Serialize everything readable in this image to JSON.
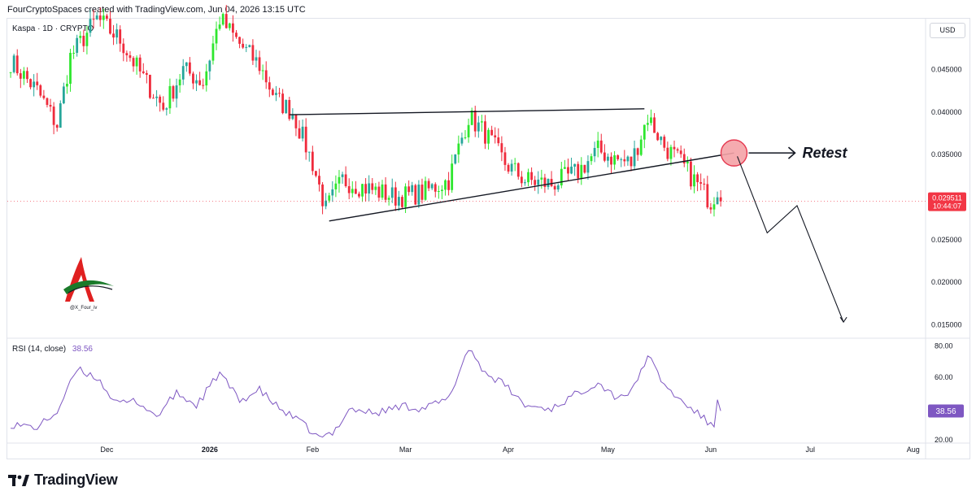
{
  "header": {
    "caption": "FourCryptoSpaces created with TradingView.com, Jun 04, 2026 13:15 UTC",
    "symbol": "Kaspa · 1D · CRYPTO",
    "currency": "USD"
  },
  "branding": {
    "footer_text": "TradingView",
    "watermark_handle": "@X_Four_iv"
  },
  "annotation": {
    "retest_label": "Retest"
  },
  "colors": {
    "up": "#26a69a",
    "bull_bright": "#2ee62e",
    "down": "#ef2b3c",
    "rsi_line": "#7e57c2",
    "price_badge": "#f23645",
    "circle_fill": "#f4a2a6",
    "circle_stroke": "#e53950"
  },
  "chart_data": [
    {
      "type": "candlestick",
      "title": "Kaspa · 1D · CRYPTO",
      "ylim": [
        0.0135,
        0.0509
      ],
      "y_ticks": [
        "0.045000",
        "0.040000",
        "0.035000",
        "0.030000",
        "0.025000",
        "0.020000",
        "0.015000"
      ],
      "y_tick_values": [
        0.045,
        0.04,
        0.035,
        0.03,
        0.025,
        0.02,
        0.015
      ],
      "x_ticks": [
        {
          "label": "Dec",
          "date": "2025-12-01"
        },
        {
          "label": "2026",
          "date": "2026-01-01",
          "bold": true
        },
        {
          "label": "Feb",
          "date": "2026-02-01"
        },
        {
          "label": "Mar",
          "date": "2026-03-01"
        },
        {
          "label": "Apr",
          "date": "2026-04-01"
        },
        {
          "label": "May",
          "date": "2026-05-01"
        },
        {
          "label": "Jun",
          "date": "2026-06-01"
        },
        {
          "label": "Jul",
          "date": "2026-07-01"
        },
        {
          "label": "Aug",
          "date": "2026-08-01"
        }
      ],
      "last_price": {
        "value": 0.029511,
        "label": "0.029511",
        "countdown": "10:44:07"
      },
      "close_series": [
        {
          "date": "2025-11-02",
          "close": 0.046
        },
        {
          "date": "2025-11-10",
          "close": 0.0425
        },
        {
          "date": "2025-11-16",
          "close": 0.0385
        },
        {
          "date": "2025-11-20",
          "close": 0.0465
        },
        {
          "date": "2025-11-28",
          "close": 0.051
        },
        {
          "date": "2025-12-05",
          "close": 0.0485
        },
        {
          "date": "2025-12-12",
          "close": 0.044
        },
        {
          "date": "2025-12-18",
          "close": 0.0405
        },
        {
          "date": "2025-12-24",
          "close": 0.045
        },
        {
          "date": "2025-12-30",
          "close": 0.0435
        },
        {
          "date": "2026-01-04",
          "close": 0.051
        },
        {
          "date": "2026-01-10",
          "close": 0.048
        },
        {
          "date": "2026-01-16",
          "close": 0.0455
        },
        {
          "date": "2026-01-21",
          "close": 0.0415
        },
        {
          "date": "2026-01-26",
          "close": 0.04
        },
        {
          "date": "2026-02-01",
          "close": 0.034
        },
        {
          "date": "2026-02-05",
          "close": 0.0285
        },
        {
          "date": "2026-02-10",
          "close": 0.032
        },
        {
          "date": "2026-02-18",
          "close": 0.031
        },
        {
          "date": "2026-02-26",
          "close": 0.03
        },
        {
          "date": "2026-03-06",
          "close": 0.0305
        },
        {
          "date": "2026-03-14",
          "close": 0.032
        },
        {
          "date": "2026-03-20",
          "close": 0.0395
        },
        {
          "date": "2026-03-25",
          "close": 0.0375
        },
        {
          "date": "2026-03-31",
          "close": 0.034
        },
        {
          "date": "2026-04-06",
          "close": 0.032
        },
        {
          "date": "2026-04-14",
          "close": 0.0315
        },
        {
          "date": "2026-04-22",
          "close": 0.033
        },
        {
          "date": "2026-04-28",
          "close": 0.0355
        },
        {
          "date": "2026-05-03",
          "close": 0.0345
        },
        {
          "date": "2026-05-08",
          "close": 0.034
        },
        {
          "date": "2026-05-13",
          "close": 0.0395
        },
        {
          "date": "2026-05-18",
          "close": 0.036
        },
        {
          "date": "2026-05-23",
          "close": 0.034
        },
        {
          "date": "2026-05-28",
          "close": 0.0315
        },
        {
          "date": "2026-06-01",
          "close": 0.0295
        },
        {
          "date": "2026-06-03",
          "close": 0.031
        },
        {
          "date": "2026-06-04",
          "close": 0.0295
        }
      ],
      "trendlines": [
        {
          "from": {
            "date": "2026-01-25",
            "price": 0.0397
          },
          "to": {
            "date": "2026-05-12",
            "price": 0.0404
          }
        },
        {
          "from": {
            "date": "2026-02-06",
            "price": 0.0272
          },
          "to": {
            "date": "2026-06-08",
            "price": 0.0352
          }
        }
      ],
      "projection": [
        {
          "date": "2026-06-09",
          "price": 0.0348
        },
        {
          "date": "2026-06-18",
          "price": 0.0258
        },
        {
          "date": "2026-06-27",
          "price": 0.029
        },
        {
          "date": "2026-07-11",
          "price": 0.0153
        }
      ],
      "retest_zone": {
        "date": "2026-06-08",
        "price": 0.0352
      }
    },
    {
      "type": "line",
      "title": "RSI (14, close)",
      "current_value": "38.56",
      "current": 38.56,
      "ylim": [
        18,
        84
      ],
      "y_ticks": [
        "80.00",
        "60.00",
        "20.00"
      ],
      "y_tick_values": [
        80,
        60,
        20
      ],
      "series": [
        {
          "date": "2025-11-02",
          "value": 30
        },
        {
          "date": "2025-11-10",
          "value": 28
        },
        {
          "date": "2025-11-16",
          "value": 38
        },
        {
          "date": "2025-11-22",
          "value": 65
        },
        {
          "date": "2025-11-28",
          "value": 60
        },
        {
          "date": "2025-12-04",
          "value": 43
        },
        {
          "date": "2025-12-10",
          "value": 45
        },
        {
          "date": "2025-12-16",
          "value": 35
        },
        {
          "date": "2025-12-22",
          "value": 50
        },
        {
          "date": "2025-12-28",
          "value": 42
        },
        {
          "date": "2026-01-04",
          "value": 63
        },
        {
          "date": "2026-01-10",
          "value": 45
        },
        {
          "date": "2026-01-16",
          "value": 52
        },
        {
          "date": "2026-01-22",
          "value": 40
        },
        {
          "date": "2026-01-28",
          "value": 32
        },
        {
          "date": "2026-02-03",
          "value": 21
        },
        {
          "date": "2026-02-07",
          "value": 24
        },
        {
          "date": "2026-02-12",
          "value": 40
        },
        {
          "date": "2026-02-20",
          "value": 37
        },
        {
          "date": "2026-02-28",
          "value": 42
        },
        {
          "date": "2026-03-06",
          "value": 40
        },
        {
          "date": "2026-03-14",
          "value": 46
        },
        {
          "date": "2026-03-20",
          "value": 79
        },
        {
          "date": "2026-03-25",
          "value": 63
        },
        {
          "date": "2026-03-31",
          "value": 55
        },
        {
          "date": "2026-04-06",
          "value": 42
        },
        {
          "date": "2026-04-14",
          "value": 40
        },
        {
          "date": "2026-04-22",
          "value": 50
        },
        {
          "date": "2026-04-28",
          "value": 57
        },
        {
          "date": "2026-05-03",
          "value": 48
        },
        {
          "date": "2026-05-08",
          "value": 50
        },
        {
          "date": "2026-05-13",
          "value": 74
        },
        {
          "date": "2026-05-18",
          "value": 55
        },
        {
          "date": "2026-05-23",
          "value": 45
        },
        {
          "date": "2026-05-28",
          "value": 37
        },
        {
          "date": "2026-06-02",
          "value": 28
        },
        {
          "date": "2026-06-03",
          "value": 47
        },
        {
          "date": "2026-06-04",
          "value": 38.56
        }
      ]
    }
  ]
}
